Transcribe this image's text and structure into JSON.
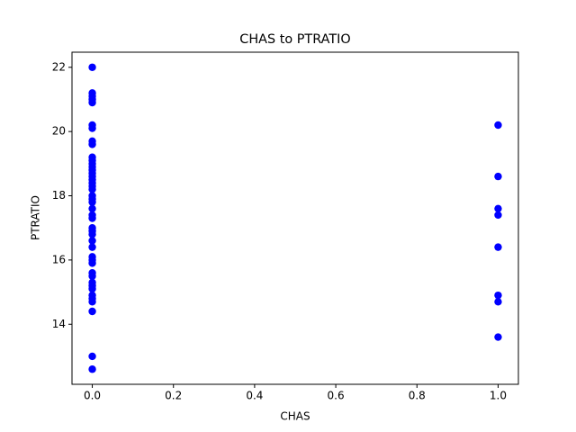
{
  "chart_data": {
    "type": "scatter",
    "title": "CHAS to PTRATIO",
    "x_label": "CHAS",
    "y_label": "PTRATIO",
    "series": [
      {
        "color": "#0000ff",
        "x": [
          0,
          0,
          0,
          0,
          0,
          0,
          0,
          0,
          0,
          0,
          0,
          0,
          0,
          0,
          0,
          0,
          0,
          0,
          0,
          0,
          0,
          0,
          0,
          0,
          0,
          0,
          0,
          0,
          0,
          0,
          0,
          0,
          0,
          0,
          0,
          0,
          0,
          0,
          0,
          0,
          0,
          0,
          0,
          0,
          0,
          1,
          1,
          1,
          1,
          1,
          1,
          1,
          1
        ],
        "values": [
          12.6,
          13.0,
          14.4,
          14.7,
          14.8,
          14.9,
          15.1,
          15.2,
          15.3,
          15.5,
          15.6,
          15.9,
          16.0,
          16.1,
          16.4,
          16.6,
          16.8,
          16.9,
          17.0,
          17.3,
          17.4,
          17.6,
          17.8,
          17.9,
          18.0,
          18.2,
          18.3,
          18.4,
          18.5,
          18.6,
          18.7,
          18.8,
          18.9,
          19.0,
          19.1,
          19.2,
          19.6,
          19.7,
          20.1,
          20.2,
          20.9,
          21.0,
          21.1,
          21.2,
          22.0,
          13.6,
          14.7,
          14.9,
          16.4,
          17.4,
          17.6,
          18.6,
          20.2
        ]
      }
    ],
    "xlim": [
      -0.05,
      1.05
    ],
    "xticks": [
      {
        "value": 0,
        "label": "0.0"
      },
      {
        "value": 0.2,
        "label": "0.2"
      },
      {
        "value": 0.4,
        "label": "0.4"
      },
      {
        "value": 0.6,
        "label": "0.6"
      },
      {
        "value": 0.8,
        "label": "0.8"
      },
      {
        "value": 1,
        "label": "1.0"
      }
    ],
    "ylim": [
      12.13,
      22.47
    ],
    "yticks": [
      14,
      16,
      18,
      20,
      22
    ]
  }
}
